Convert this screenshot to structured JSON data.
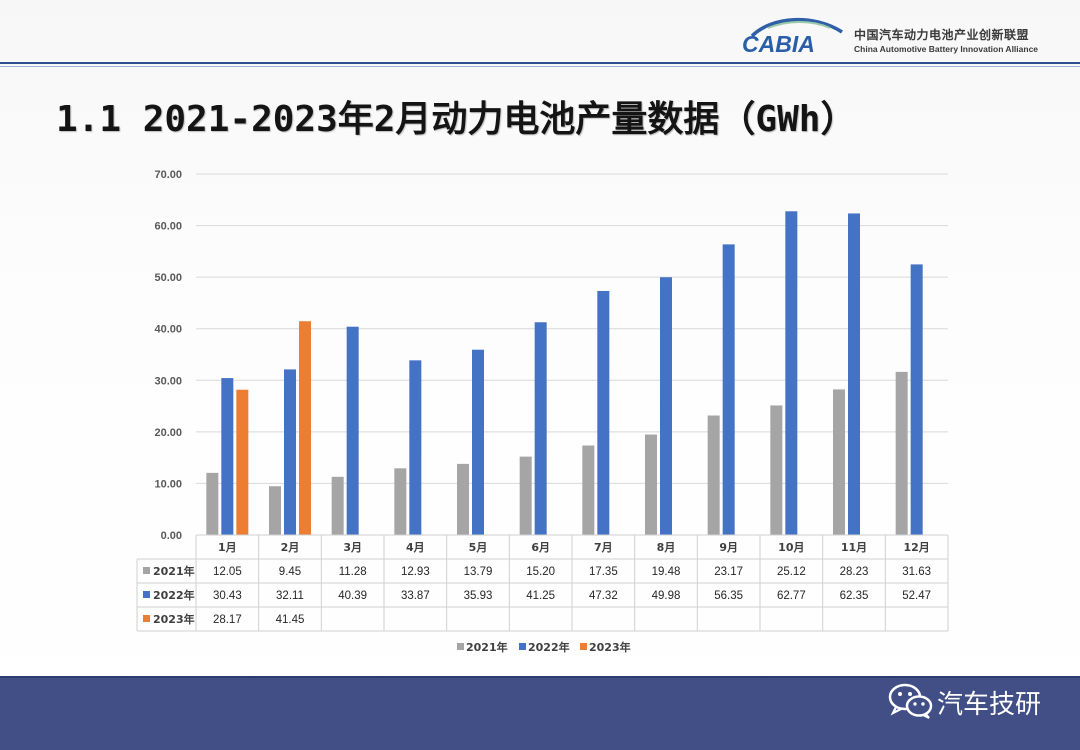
{
  "header": {
    "logo_mark_text": "CABIA",
    "org_name_cn": "中国汽车动力电池产业创新联盟",
    "org_name_en": "China Automotive Battery Innovation Alliance"
  },
  "title": "1.1 2021-2023年2月动力电池产量数据（GWh）",
  "chart_data": {
    "type": "bar",
    "categories": [
      "1月",
      "2月",
      "3月",
      "4月",
      "5月",
      "6月",
      "7月",
      "8月",
      "9月",
      "10月",
      "11月",
      "12月"
    ],
    "series": [
      {
        "name": "2021年",
        "color": "#a5a5a5",
        "values": [
          12.05,
          9.45,
          11.28,
          12.93,
          13.79,
          15.2,
          17.35,
          19.48,
          23.17,
          25.12,
          28.23,
          31.63
        ],
        "labels": [
          "12.05",
          "9.45",
          "11.28",
          "12.93",
          "13.79",
          "15.20",
          "17.35",
          "19.48",
          "23.17",
          "25.12",
          "28.23",
          "31.63"
        ]
      },
      {
        "name": "2022年",
        "color": "#4472c4",
        "values": [
          30.43,
          32.11,
          40.39,
          33.87,
          35.93,
          41.25,
          47.32,
          49.98,
          56.35,
          62.77,
          62.35,
          52.47
        ],
        "labels": [
          "30.43",
          "32.11",
          "40.39",
          "33.87",
          "35.93",
          "41.25",
          "47.32",
          "49.98",
          "56.35",
          "62.77",
          "62.35",
          "52.47"
        ]
      },
      {
        "name": "2023年",
        "color": "#ed7d31",
        "values": [
          28.17,
          41.45,
          null,
          null,
          null,
          null,
          null,
          null,
          null,
          null,
          null,
          null
        ],
        "labels": [
          "28.17",
          "41.45",
          "",
          "",
          "",
          "",
          "",
          "",
          "",
          "",
          "",
          ""
        ]
      }
    ],
    "ylim": [
      0,
      70
    ],
    "yticks": [
      "0.00",
      "10.00",
      "20.00",
      "30.00",
      "40.00",
      "50.00",
      "60.00",
      "70.00"
    ],
    "grid": true,
    "data_table": true,
    "legend_position": "bottom"
  },
  "footer": {
    "watermark": "汽车技研",
    "icon": "wechat-icon"
  }
}
